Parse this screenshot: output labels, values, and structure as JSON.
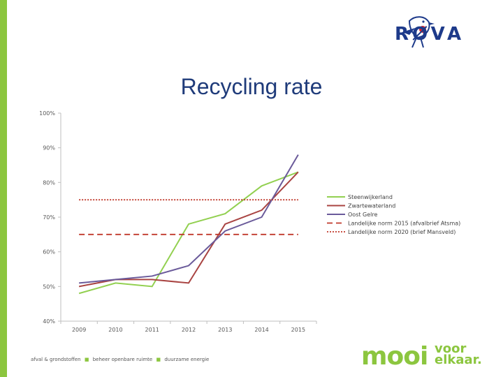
{
  "logo": {
    "text": "RØVA",
    "colors": {
      "bird_blue": "#1d3a8a",
      "bird_red": "#d7282f"
    }
  },
  "title": "Recycling rate",
  "footer": {
    "items": [
      "afval & grondstoffen",
      "beheer openbare ruimte",
      "duurzame energie"
    ]
  },
  "slogan": {
    "mooi": "mooi",
    "voor": "voor",
    "elkaar": "elkaar."
  },
  "chart_data": {
    "type": "line",
    "title": "",
    "xlabel": "",
    "ylabel": "",
    "categories": [
      "2009",
      "2010",
      "2011",
      "2012",
      "2013",
      "2014",
      "2015"
    ],
    "ylim": [
      40,
      100
    ],
    "yticks": [
      40,
      50,
      60,
      70,
      80,
      90,
      100
    ],
    "ytick_labels": [
      "40%",
      "50%",
      "60%",
      "70%",
      "80%",
      "90%",
      "100%"
    ],
    "grid": false,
    "legend_position": "right",
    "series": [
      {
        "name": "Steenwijkerland",
        "color": "#92d050",
        "dash": "solid",
        "values": [
          48,
          51,
          50,
          68,
          71,
          79,
          83
        ]
      },
      {
        "name": "Zwartewaterland",
        "color": "#a94442",
        "dash": "solid",
        "values": [
          50,
          52,
          52,
          51,
          68,
          72,
          83
        ]
      },
      {
        "name": "Oost Gelre",
        "color": "#6a5a9a",
        "dash": "solid",
        "values": [
          51,
          52,
          53,
          56,
          66,
          70,
          88
        ]
      },
      {
        "name": "Landelijke norm 2015 (afvalbrief Atsma)",
        "color": "#c0392b",
        "dash": "dashed",
        "values": [
          65,
          65,
          65,
          65,
          65,
          65,
          65
        ]
      },
      {
        "name": "Landelijke norm 2020 (brief Mansveld)",
        "color": "#c0392b",
        "dash": "dotted",
        "values": [
          75,
          75,
          75,
          75,
          75,
          75,
          75
        ]
      }
    ]
  }
}
